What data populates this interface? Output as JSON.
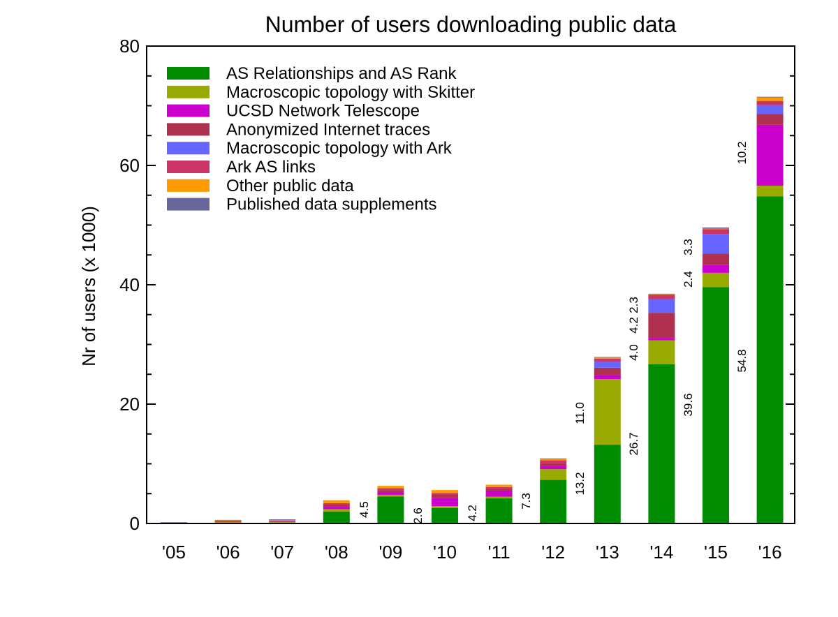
{
  "chart_data": {
    "type": "bar",
    "stacked": true,
    "title": "Number of users downloading public data",
    "ylabel": "Nr of users (x 1000)",
    "xlabel": "",
    "ylim": [
      0,
      80
    ],
    "yticks": [
      0,
      20,
      40,
      60,
      80
    ],
    "yminor_step": 5,
    "grid": false,
    "legend_position": "top-left",
    "categories": [
      "'05",
      "'06",
      "'07",
      "'08",
      "'09",
      "'10",
      "'11",
      "'12",
      "'13",
      "'14",
      "'15",
      "'16"
    ],
    "series": [
      {
        "name": "AS Relationships and AS Rank",
        "color": "#008c00",
        "values": [
          0,
          0,
          0,
          2.0,
          4.5,
          2.6,
          4.2,
          7.3,
          13.2,
          26.7,
          39.6,
          54.8
        ]
      },
      {
        "name": "Macroscopic topology with Skitter",
        "color": "#99aa00",
        "values": [
          0.1,
          0.2,
          0.3,
          0.4,
          0.3,
          0.3,
          0.3,
          1.8,
          11.0,
          4.0,
          2.4,
          1.8
        ]
      },
      {
        "name": "UCSD Network Telescope",
        "color": "#cc00cc",
        "values": [
          0,
          0.1,
          0.1,
          0.4,
          0.4,
          1.4,
          1.0,
          0.5,
          0.6,
          0.4,
          1.3,
          10.2
        ]
      },
      {
        "name": "Anonymized Internet traces",
        "color": "#b03050",
        "values": [
          0,
          0.1,
          0.1,
          0.3,
          0.4,
          0.5,
          0.3,
          0.5,
          1.3,
          4.2,
          1.9,
          1.8
        ]
      },
      {
        "name": "Macroscopic topology with Ark",
        "color": "#6666ff",
        "values": [
          0,
          0,
          0,
          0,
          0,
          0,
          0,
          0,
          1.0,
          2.3,
          3.3,
          1.5
        ]
      },
      {
        "name": "Ark AS links",
        "color": "#cc3366",
        "values": [
          0,
          0,
          0,
          0.3,
          0.3,
          0.3,
          0.3,
          0.5,
          0.5,
          0.7,
          0.8,
          0.7
        ]
      },
      {
        "name": "Other public data",
        "color": "#ff9900",
        "values": [
          0,
          0.1,
          0.1,
          0.5,
          0.4,
          0.5,
          0.4,
          0.2,
          0.2,
          0.1,
          0.1,
          0.6
        ]
      },
      {
        "name": "Published data supplements",
        "color": "#666699",
        "values": [
          0.1,
          0.1,
          0.1,
          0,
          0,
          0,
          0,
          0.1,
          0.1,
          0.1,
          0.2,
          0.1
        ]
      }
    ],
    "data_labels": [
      {
        "text": "4.5",
        "category": "'09"
      },
      {
        "text": "2.6",
        "category": "'10"
      },
      {
        "text": "4.2",
        "category": "'11"
      },
      {
        "text": "7.3",
        "category": "'12"
      },
      {
        "text": "13.2",
        "category": "'13"
      },
      {
        "text": "11.0",
        "category": "'13"
      },
      {
        "text": "26.7",
        "category": "'14"
      },
      {
        "text": "4.0",
        "category": "'14"
      },
      {
        "text": "4.2",
        "category": "'14"
      },
      {
        "text": "2.3",
        "category": "'14"
      },
      {
        "text": "39.6",
        "category": "'15"
      },
      {
        "text": "2.4",
        "category": "'15"
      },
      {
        "text": "3.3",
        "category": "'15"
      },
      {
        "text": "54.8",
        "category": "'16"
      },
      {
        "text": "10.2",
        "category": "'16"
      }
    ]
  }
}
